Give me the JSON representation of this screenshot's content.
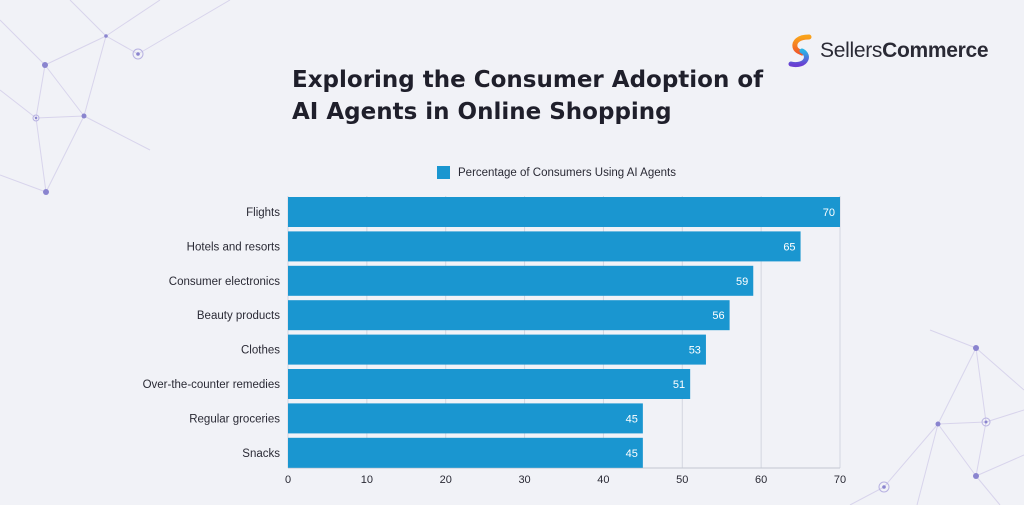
{
  "brand": {
    "name_regular": "Sellers",
    "name_bold": "Commerce"
  },
  "colors": {
    "bar": "#1a96d0",
    "grid": "#d4d7e0",
    "text": "#2a2a35",
    "accent": "#7b6fd6"
  },
  "chart_data": {
    "type": "bar",
    "orientation": "horizontal",
    "title": "Exploring the Consumer Adoption of AI Agents in Online Shopping",
    "legend_position": "top",
    "xlabel": "",
    "ylabel": "",
    "xlim": [
      0,
      70
    ],
    "xticks": [
      0,
      10,
      20,
      30,
      40,
      50,
      60,
      70
    ],
    "grid": true,
    "categories": [
      "Flights",
      "Hotels and resorts",
      "Consumer electronics",
      "Beauty products",
      "Clothes",
      "Over-the-counter remedies",
      "Regular groceries",
      "Snacks"
    ],
    "series": [
      {
        "name": "Percentage of Consumers Using AI Agents",
        "values": [
          70,
          65,
          59,
          56,
          53,
          51,
          45,
          45
        ]
      }
    ]
  }
}
